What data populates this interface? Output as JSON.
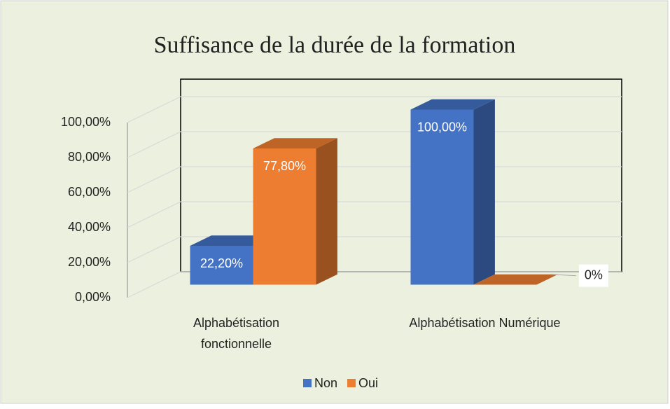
{
  "chart_data": {
    "type": "bar3d",
    "title": "Suffisance de la durée de la formation",
    "categories": [
      "Alphabétisation fonctionnelle",
      "Alphabétisation Numérique"
    ],
    "series": [
      {
        "name": "Non",
        "color": "#4472c4",
        "values": [
          22.2,
          100
        ],
        "value_labels": [
          "22,20%",
          "100,00%"
        ]
      },
      {
        "name": "Oui",
        "color": "#ed7d31",
        "values": [
          77.8,
          0
        ],
        "value_labels": [
          "77,80%",
          "0%"
        ]
      }
    ],
    "ylim": [
      0,
      100
    ],
    "yticks": [
      {
        "value": 0,
        "label": "0,00%"
      },
      {
        "value": 20,
        "label": "20,00%"
      },
      {
        "value": 40,
        "label": "40,00%"
      },
      {
        "value": 60,
        "label": "60,00%"
      },
      {
        "value": 80,
        "label": "80,00%"
      },
      {
        "value": 100,
        "label": "100,00%"
      }
    ],
    "grid": true,
    "legend": "bottom"
  }
}
